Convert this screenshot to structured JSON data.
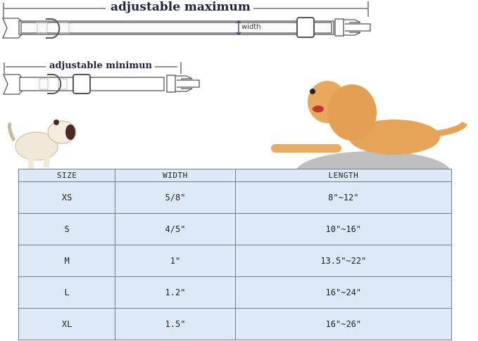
{
  "labels": {
    "max": "adjustable maximum",
    "min": "adjustable minimun",
    "width": "width"
  },
  "colors": {
    "table_fill": "#dce9f6",
    "border": "#6f7f8c",
    "label": "#1e2340",
    "golden_dog": "#e6a456"
  },
  "icons": [
    "collar-max-drawing",
    "collar-min-drawing",
    "puppy-illustration",
    "golden-retriever-illustration"
  ],
  "table": {
    "headers": [
      "SIZE",
      "WIDTH",
      "LENGTH"
    ],
    "rows": [
      [
        "XS",
        "5/8\"",
        "8\"~12\""
      ],
      [
        "S",
        "4/5\"",
        "10\"~16\""
      ],
      [
        "M",
        "1\"",
        "13.5\"~22\""
      ],
      [
        "L",
        "1.2\"",
        "16\"~24\""
      ],
      [
        "XL",
        "1.5\"",
        "16\"~26\""
      ]
    ]
  }
}
